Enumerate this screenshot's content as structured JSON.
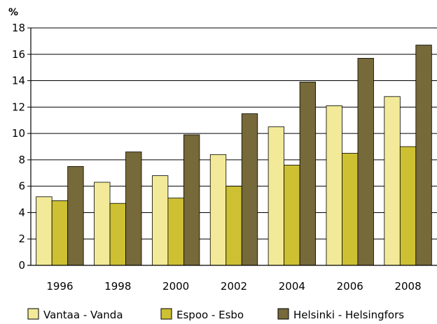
{
  "chart_data": {
    "type": "bar",
    "ylabel": "%",
    "ylim": [
      0,
      18
    ],
    "yticks": [
      0,
      2,
      4,
      6,
      8,
      10,
      12,
      14,
      16,
      18
    ],
    "grid": true,
    "legend_position": "bottom",
    "categories": [
      "1996",
      "1998",
      "2000",
      "2002",
      "2004",
      "2006",
      "2008"
    ],
    "series": [
      {
        "name": "Vantaa - Vanda",
        "color": "#f2ea98",
        "values": [
          5.2,
          6.3,
          6.8,
          8.4,
          10.5,
          12.1,
          12.8
        ]
      },
      {
        "name": "Espoo - Esbo",
        "color": "#cdc033",
        "values": [
          4.9,
          4.7,
          5.1,
          6.0,
          7.6,
          8.5,
          9.0
        ]
      },
      {
        "name": "Helsinki - Helsingfors",
        "color": "#76693a",
        "values": [
          7.5,
          8.6,
          9.9,
          11.5,
          13.9,
          15.7,
          16.7
        ]
      }
    ]
  }
}
